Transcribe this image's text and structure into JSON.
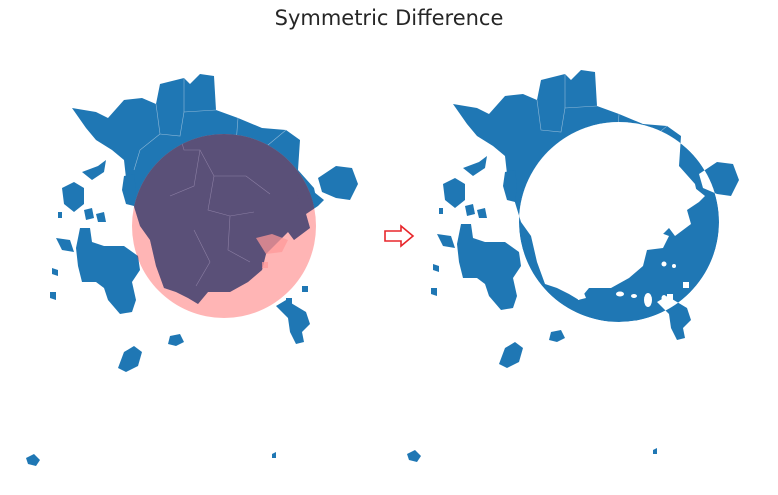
{
  "figure": {
    "title": "Symmetric Difference"
  },
  "colors": {
    "shape": "#1f77b4",
    "circle_overlay": "#ff9999",
    "overlap": "#5a5078",
    "arrow": "#e8262b",
    "background": "#ffffff"
  },
  "panels": [
    {
      "role": "input",
      "description_icon": "shape-plus-circle"
    },
    {
      "role": "result",
      "description_icon": "shape-minus-circle"
    }
  ],
  "arrow_icon": "right-arrow-icon"
}
